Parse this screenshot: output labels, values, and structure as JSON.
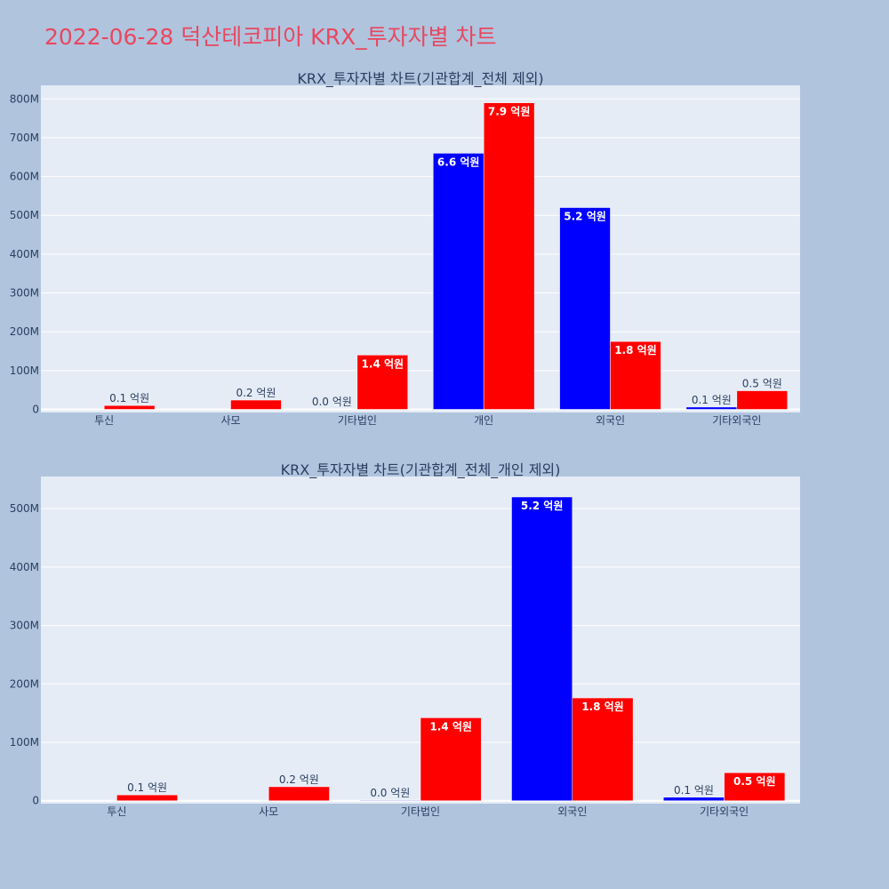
{
  "page": {
    "title": "2022-06-28 덕산테코피아 KRX_투자자별 차트"
  },
  "colors": {
    "buy": "#0000ff",
    "sell": "#ff0000",
    "plot_bg": "#e5ecf6",
    "page_bg": "#b0c4de",
    "title": "#e8475f"
  },
  "chart_data": [
    {
      "type": "bar",
      "title": "KRX_투자자별 차트(기관합계_전체 제외)",
      "categories": [
        "투신",
        "사모",
        "기타법인",
        "개인",
        "외국인",
        "기타외국인"
      ],
      "series": [
        {
          "values": [
            0,
            0,
            1000000,
            660000000,
            520000000,
            6000000
          ],
          "labels": [
            "",
            "",
            "0.0 억원",
            "6.6 억원",
            "5.2 억원",
            "0.1 억원"
          ]
        },
        {
          "values": [
            10000000,
            24000000,
            140000000,
            790000000,
            175000000,
            48000000
          ],
          "labels": [
            "0.1 억원",
            "0.2 억원",
            "1.4 억원",
            "7.9 억원",
            "1.8 억원",
            "0.5 억원"
          ]
        }
      ],
      "ylim": [
        -8000000,
        835000000
      ],
      "yticks": [
        0,
        100000000,
        200000000,
        300000000,
        400000000,
        500000000,
        600000000,
        700000000,
        800000000
      ],
      "ytick_labels": [
        "0",
        "100M",
        "200M",
        "300M",
        "400M",
        "500M",
        "600M",
        "700M",
        "800M"
      ],
      "grid": true,
      "legend": "none"
    },
    {
      "type": "bar",
      "title": "KRX_투자자별 차트(기관합계_전체_개인 제외)",
      "categories": [
        "투신",
        "사모",
        "기타법인",
        "외국인",
        "기타외국인"
      ],
      "series": [
        {
          "values": [
            0,
            0,
            1000000,
            520000000,
            6000000
          ],
          "labels": [
            "",
            "",
            "0.0 억원",
            "5.2 억원",
            "0.1 억원"
          ]
        },
        {
          "values": [
            10000000,
            24000000,
            142000000,
            176000000,
            48000000
          ],
          "labels": [
            "0.1 억원",
            "0.2 억원",
            "1.4 억원",
            "1.8 억원",
            "0.5 억원"
          ]
        }
      ],
      "ylim": [
        -5000000,
        555000000
      ],
      "yticks": [
        0,
        100000000,
        200000000,
        300000000,
        400000000,
        500000000
      ],
      "ytick_labels": [
        "0",
        "100M",
        "200M",
        "300M",
        "400M",
        "500M"
      ],
      "grid": true,
      "legend": "none"
    }
  ]
}
